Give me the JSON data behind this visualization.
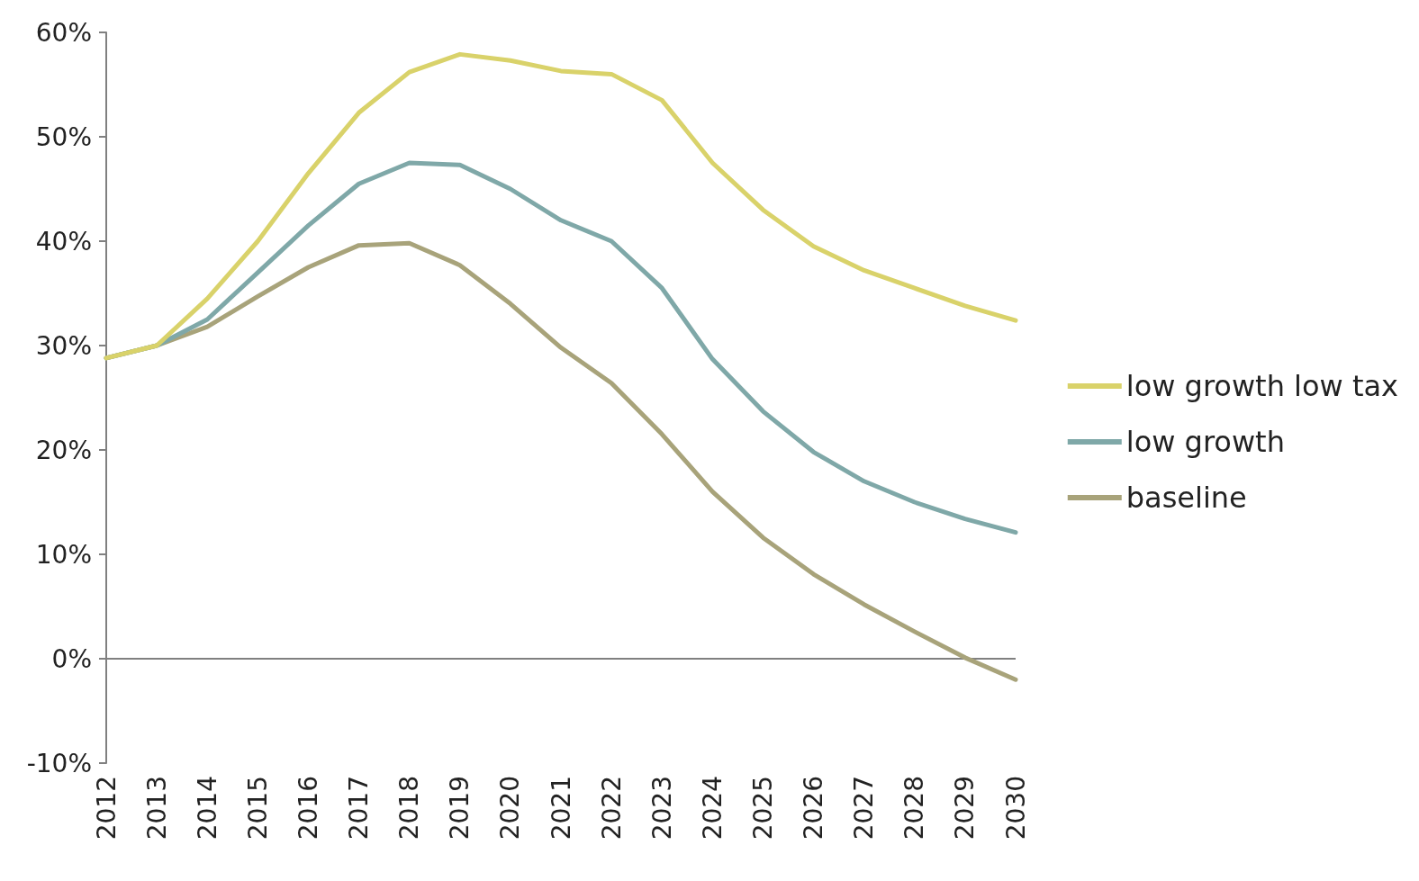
{
  "chart_data": {
    "type": "line",
    "categories": [
      "2012",
      "2013",
      "2014",
      "2015",
      "2016",
      "2017",
      "2018",
      "2019",
      "2020",
      "2021",
      "2022",
      "2023",
      "2024",
      "2025",
      "2026",
      "2027",
      "2028",
      "2029",
      "2030"
    ],
    "series": [
      {
        "name": "low growth low tax",
        "color": "#d9d26a",
        "values": [
          28.8,
          30,
          34.5,
          40,
          46.5,
          52.3,
          56.2,
          57.9,
          57.3,
          56.3,
          56,
          53.5,
          47.5,
          43,
          39.5,
          37.2,
          35.5,
          33.8,
          32.4
        ]
      },
      {
        "name": "low growth",
        "color": "#7fa8a8",
        "values": [
          28.8,
          30,
          32.5,
          37,
          41.5,
          45.5,
          47.5,
          47.3,
          45,
          42,
          40,
          35.5,
          28.7,
          23.7,
          19.8,
          17,
          15,
          13.4,
          12.1
        ]
      },
      {
        "name": "baseline",
        "color": "#a8a37a",
        "values": [
          28.8,
          30,
          31.8,
          34.7,
          37.5,
          39.6,
          39.8,
          37.7,
          34,
          29.8,
          26.4,
          21.5,
          16,
          11.6,
          8.1,
          5.2,
          2.6,
          0.1,
          -2
        ]
      }
    ],
    "ylim": [
      -10,
      60
    ],
    "yticks": [
      {
        "value": -10,
        "label": "-10%"
      },
      {
        "value": 0,
        "label": "0%"
      },
      {
        "value": 10,
        "label": "10%"
      },
      {
        "value": 20,
        "label": "20%"
      },
      {
        "value": 30,
        "label": "30%"
      },
      {
        "value": 40,
        "label": "40%"
      },
      {
        "value": 50,
        "label": "50%"
      },
      {
        "value": 60,
        "label": "60%"
      }
    ],
    "ref_lines": [
      {
        "axis": "y",
        "value": 0,
        "color": "#808080"
      }
    ],
    "grid": false,
    "legend": "right",
    "marker": "none",
    "line_style": "solid"
  }
}
